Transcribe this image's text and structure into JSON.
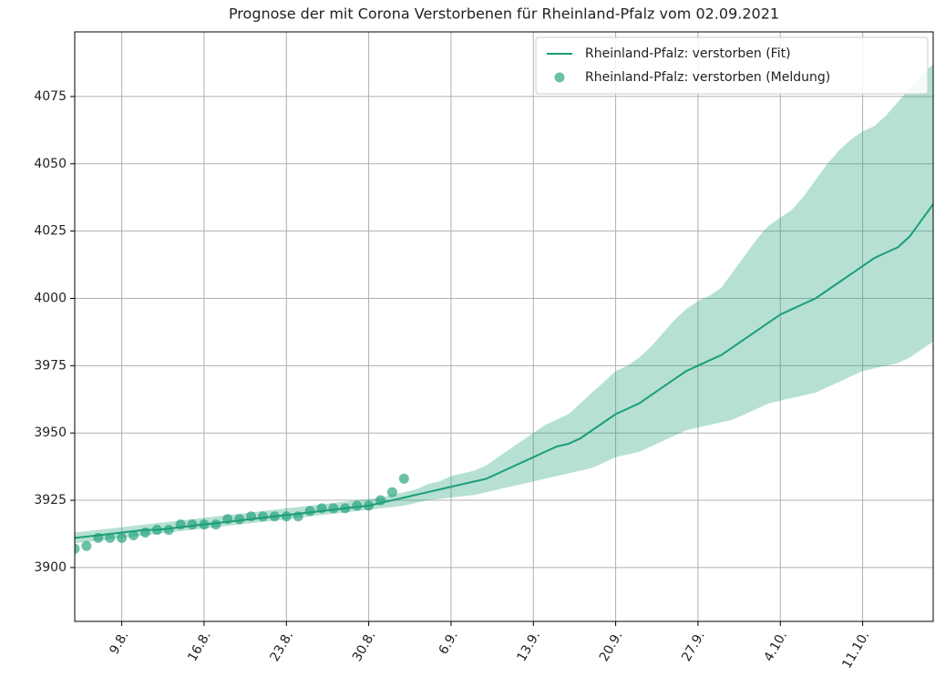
{
  "chart_data": {
    "type": "line",
    "title": "Prognose der mit Corona Verstorbenen für Rheinland-Pfalz vom 02.09.2021",
    "x": [
      "5.8.",
      "6.8.",
      "7.8.",
      "8.8.",
      "9.8.",
      "10.8.",
      "11.8.",
      "12.8.",
      "13.8.",
      "14.8.",
      "15.8.",
      "16.8.",
      "17.8.",
      "18.8.",
      "19.8.",
      "20.8.",
      "21.8.",
      "22.8.",
      "23.8.",
      "24.8.",
      "25.8.",
      "26.8.",
      "27.8.",
      "28.8.",
      "29.8.",
      "30.8.",
      "31.8.",
      "1.9.",
      "2.9.",
      "3.9.",
      "4.9.",
      "5.9.",
      "6.9.",
      "7.9.",
      "8.9.",
      "9.9.",
      "10.9.",
      "11.9.",
      "12.9.",
      "13.9.",
      "14.9.",
      "15.9.",
      "16.9.",
      "17.9.",
      "18.9.",
      "19.9.",
      "20.9.",
      "21.9.",
      "22.9.",
      "23.9.",
      "24.9.",
      "25.9.",
      "26.9.",
      "27.9.",
      "28.9.",
      "29.9.",
      "30.9.",
      "1.10.",
      "2.10.",
      "3.10.",
      "4.10.",
      "5.10.",
      "6.10.",
      "7.10.",
      "8.10.",
      "9.10.",
      "10.10.",
      "11.10.",
      "12.10.",
      "13.10.",
      "14.10.",
      "15.10.",
      "16.10.",
      "17.10."
    ],
    "series": [
      {
        "name": "Rheinland-Pfalz: verstorben (Fit)",
        "color": "#1b9e77",
        "kind": "line",
        "values": [
          3911,
          3911.5,
          3912,
          3912.5,
          3913,
          3913.5,
          3914,
          3914,
          3914.5,
          3915,
          3915.5,
          3916,
          3916.5,
          3917,
          3917.5,
          3918,
          3918.5,
          3919,
          3919.5,
          3920,
          3920.5,
          3921,
          3921.5,
          3922,
          3922.5,
          3923,
          3924,
          3925,
          3926,
          3927,
          3928,
          3929,
          3930,
          3931,
          3932,
          3933,
          3935,
          3937,
          3939,
          3941,
          3943,
          3945,
          3946,
          3948,
          3951,
          3954,
          3957,
          3959,
          3961,
          3964,
          3967,
          3970,
          3973,
          3975,
          3977,
          3979,
          3982,
          3985,
          3988,
          3991,
          3994,
          3996,
          3998,
          4000,
          4003,
          4006,
          4009,
          4012,
          4015,
          4017,
          4019,
          4023,
          4029,
          4035
        ],
        "lower": [
          3909,
          3909.5,
          3910,
          3910.5,
          3911,
          3911.5,
          3912,
          3912.5,
          3913,
          3913.5,
          3914,
          3914.5,
          3915,
          3915.5,
          3916,
          3916.5,
          3917,
          3917.5,
          3918,
          3918.5,
          3919,
          3919.5,
          3920,
          3920.5,
          3921,
          3921.5,
          3922,
          3922.5,
          3923,
          3924,
          3925,
          3925.5,
          3926,
          3926.5,
          3927,
          3928,
          3929,
          3930,
          3931,
          3932,
          3933,
          3934,
          3935,
          3936,
          3937,
          3939,
          3941,
          3942,
          3943,
          3945,
          3947,
          3949,
          3951,
          3952,
          3953,
          3954,
          3955,
          3957,
          3959,
          3961,
          3962,
          3963,
          3964,
          3965,
          3967,
          3969,
          3971,
          3973,
          3974,
          3975,
          3976,
          3978,
          3981,
          3984
        ],
        "upper": [
          3913,
          3913.5,
          3914,
          3914.5,
          3915,
          3915.5,
          3916,
          3916.5,
          3917,
          3917.5,
          3918,
          3918.5,
          3919,
          3919.5,
          3920,
          3920.5,
          3921,
          3921.5,
          3922,
          3922.5,
          3923,
          3923.5,
          3924,
          3924.5,
          3925,
          3925.5,
          3926,
          3927,
          3928,
          3929,
          3931,
          3932,
          3934,
          3935,
          3936,
          3938,
          3941,
          3944,
          3947,
          3950,
          3953,
          3955,
          3957,
          3961,
          3965,
          3969,
          3973,
          3975,
          3978,
          3982,
          3987,
          3992,
          3996,
          3999,
          4001,
          4004,
          4010,
          4016,
          4022,
          4027,
          4030,
          4033,
          4038,
          4044,
          4050,
          4055,
          4059,
          4062,
          4064,
          4068,
          4073,
          4078,
          4083,
          4087
        ]
      },
      {
        "name": "Rheinland-Pfalz: verstorben (Meldung)",
        "color": "#1b9e77",
        "kind": "scatter",
        "x": [
          "5.8.",
          "6.8.",
          "7.8.",
          "8.8.",
          "9.8.",
          "10.8.",
          "11.8.",
          "12.8.",
          "13.8.",
          "14.8.",
          "15.8.",
          "16.8.",
          "17.8.",
          "18.8.",
          "19.8.",
          "20.8.",
          "21.8.",
          "22.8.",
          "23.8.",
          "24.8.",
          "25.8.",
          "26.8.",
          "27.8.",
          "28.8.",
          "29.8.",
          "30.8.",
          "31.8.",
          "1.9.",
          "2.9."
        ],
        "values": [
          3907,
          3908,
          3911,
          3911,
          3911,
          3912,
          3913,
          3914,
          3914,
          3916,
          3916,
          3916,
          3916,
          3918,
          3918,
          3919,
          3919,
          3919,
          3919,
          3919,
          3921,
          3922,
          3922,
          3922,
          3923,
          3923,
          3925,
          3928,
          3933
        ]
      }
    ],
    "ylim": [
      3880,
      4099
    ],
    "yticks": [
      3900,
      3925,
      3950,
      3975,
      4000,
      4025,
      4050,
      4075
    ],
    "xticks": [
      "9.8.",
      "16.8.",
      "23.8.",
      "30.8.",
      "6.9.",
      "13.9.",
      "20.9.",
      "27.9.",
      "4.10.",
      "11.10."
    ],
    "grid": true,
    "legend": "upper right"
  }
}
